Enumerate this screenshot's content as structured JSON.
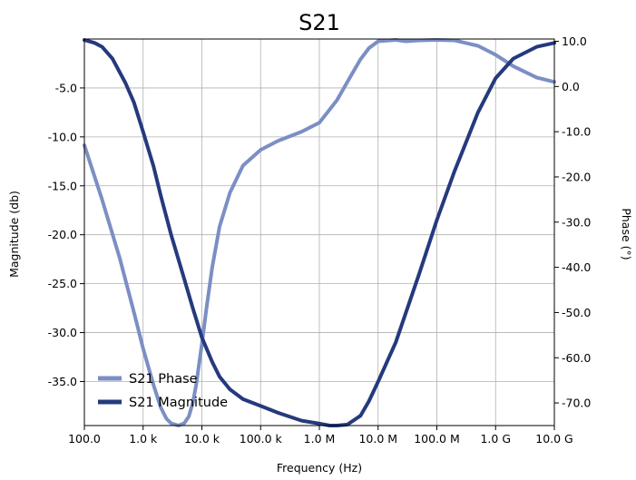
{
  "chart_data": {
    "type": "line",
    "title": "S21",
    "xlabel": "Frequency (Hz)",
    "ylabel": "Magnitude (db)",
    "y2label": "Phase (°)",
    "x_scale": "log",
    "xlim": [
      100,
      10000000000
    ],
    "ylim": [
      -39.5,
      0.0
    ],
    "y2lim": [
      -75.0,
      10.5
    ],
    "grid": true,
    "legend_position": "bottom-left",
    "x_ticks": [
      {
        "value": 100,
        "label": "100.0"
      },
      {
        "value": 1000,
        "label": "1.0 k"
      },
      {
        "value": 10000,
        "label": "10.0 k"
      },
      {
        "value": 100000,
        "label": "100.0 k"
      },
      {
        "value": 1000000,
        "label": "1.0 M"
      },
      {
        "value": 10000000,
        "label": "10.0 M"
      },
      {
        "value": 100000000,
        "label": "100.0 M"
      },
      {
        "value": 1000000000,
        "label": "1.0 G"
      },
      {
        "value": 10000000000,
        "label": "10.0 G"
      }
    ],
    "y_ticks": [
      {
        "value": -5,
        "label": "-5.0"
      },
      {
        "value": -10,
        "label": "-10.0"
      },
      {
        "value": -15,
        "label": "-15.0"
      },
      {
        "value": -20,
        "label": "-20.0"
      },
      {
        "value": -25,
        "label": "-25.0"
      },
      {
        "value": -30,
        "label": "-30.0"
      },
      {
        "value": -35,
        "label": "-35.0"
      }
    ],
    "y2_ticks": [
      {
        "value": 10,
        "label": "10.0"
      },
      {
        "value": 0,
        "label": "0.0"
      },
      {
        "value": -10,
        "label": "-10.0"
      },
      {
        "value": -20,
        "label": "-20.0"
      },
      {
        "value": -30,
        "label": "-30.0"
      },
      {
        "value": -40,
        "label": "-40.0"
      },
      {
        "value": -50,
        "label": "-50.0"
      },
      {
        "value": -60,
        "label": "-60.0"
      },
      {
        "value": -70,
        "label": "-70.0"
      }
    ],
    "series": [
      {
        "name": "S21 Phase",
        "axis": "right",
        "color": "#7b8fc4",
        "x": [
          100,
          200,
          400,
          700,
          1000,
          1500,
          2000,
          2500,
          3000,
          4000,
          5000,
          6000,
          7000,
          8000,
          10000,
          12000,
          15000,
          20000,
          30000,
          50000,
          100000,
          200000,
          500000,
          1000000,
          2000000,
          3000000,
          5000000,
          7000000,
          10000000,
          20000000,
          30000000,
          50000000,
          100000000,
          200000000,
          500000000,
          1000000000,
          2000000000,
          5000000000,
          10000000000
        ],
        "y": [
          -13,
          -25,
          -38,
          -50,
          -58,
          -66,
          -71,
          -73.5,
          -74.5,
          -75,
          -74.5,
          -73,
          -70,
          -66,
          -57,
          -49,
          -40,
          -31,
          -23.5,
          -17.5,
          -14,
          -12,
          -10,
          -8,
          -3,
          1,
          6,
          8.5,
          10,
          10.3,
          10,
          10.2,
          10.3,
          10.2,
          9,
          7,
          4.5,
          2,
          1
        ]
      },
      {
        "name": "S21 Magnitude",
        "axis": "left",
        "color": "#253a7d",
        "x": [
          100,
          150,
          200,
          300,
          500,
          700,
          1000,
          1500,
          2000,
          3000,
          5000,
          7000,
          10000,
          15000,
          20000,
          30000,
          50000,
          100000,
          200000,
          500000,
          1000000,
          1500000,
          2000000,
          3000000,
          5000000,
          7000000,
          10000000,
          20000000,
          50000000,
          100000000,
          200000000,
          500000000,
          1000000000,
          2000000000,
          5000000000,
          10000000000
        ],
        "y": [
          -0.1,
          -0.4,
          -0.8,
          -2,
          -4.5,
          -6.5,
          -9.5,
          -13,
          -16,
          -20,
          -24.5,
          -27.5,
          -30.5,
          -33,
          -34.5,
          -35.8,
          -36.8,
          -37.5,
          -38.2,
          -39,
          -39.3,
          -39.5,
          -39.5,
          -39.4,
          -38.5,
          -37,
          -35,
          -31,
          -24,
          -18.5,
          -13.5,
          -7.5,
          -4,
          -2,
          -0.8,
          -0.4
        ]
      }
    ]
  }
}
